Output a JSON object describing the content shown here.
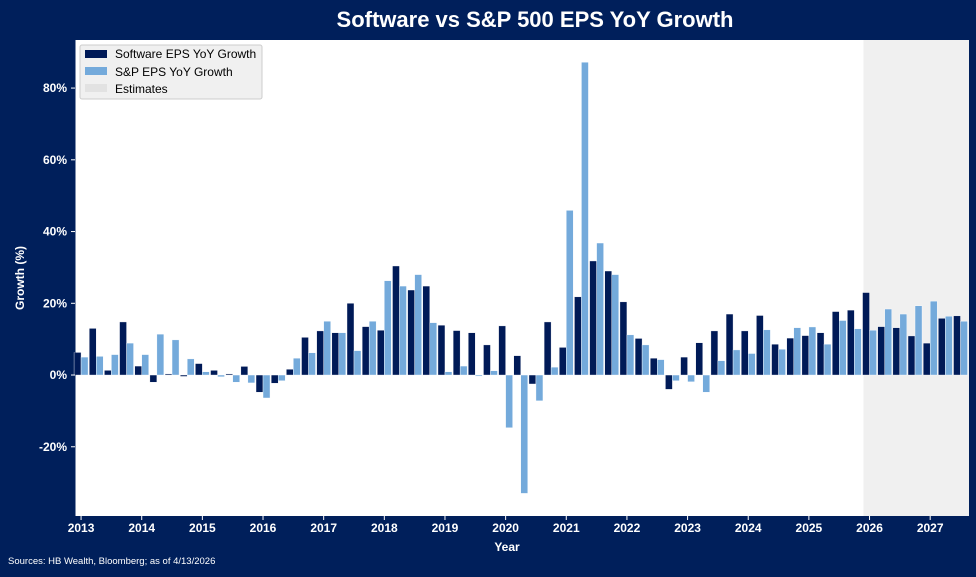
{
  "colors": {
    "background": "#001f5b",
    "software": "#001a57",
    "sp": "#74aadb",
    "estimates": "#f0f0f0"
  },
  "source": "Sources: HB Wealth, Bloomberg; as of 4/13/2026",
  "chart_data": {
    "type": "bar",
    "title": "Software vs S&P 500 EPS YoY Growth",
    "xlabel": "Year",
    "ylabel": "Growth (%)",
    "xlim": [
      2012.9,
      2027.64
    ],
    "ylim": [
      -39.3,
      93.4
    ],
    "x_ticks": [
      "2013",
      "2014",
      "2015",
      "2016",
      "2017",
      "2018",
      "2019",
      "2020",
      "2021",
      "2022",
      "2023",
      "2024",
      "2025",
      "2026",
      "2027"
    ],
    "y_ticks": [
      -20,
      0,
      20,
      40,
      60,
      80
    ],
    "y_tick_labels": [
      "-20%",
      "0%",
      "20%",
      "40%",
      "60%",
      "80%"
    ],
    "grid": false,
    "legend_position": "top-left",
    "estimates_range": [
      2025.9,
      2027.64
    ],
    "categories": [
      "2013-Q1",
      "2013-Q2",
      "2013-Q3",
      "2013-Q4",
      "2014-Q1",
      "2014-Q2",
      "2014-Q3",
      "2014-Q4",
      "2015-Q1",
      "2015-Q2",
      "2015-Q3",
      "2015-Q4",
      "2016-Q1",
      "2016-Q2",
      "2016-Q3",
      "2016-Q4",
      "2017-Q1",
      "2017-Q2",
      "2017-Q3",
      "2017-Q4",
      "2018-Q1",
      "2018-Q2",
      "2018-Q3",
      "2018-Q4",
      "2019-Q1",
      "2019-Q2",
      "2019-Q3",
      "2019-Q4",
      "2020-Q1",
      "2020-Q2",
      "2020-Q3",
      "2020-Q4",
      "2021-Q1",
      "2021-Q2",
      "2021-Q3",
      "2021-Q4",
      "2022-Q1",
      "2022-Q2",
      "2022-Q3",
      "2022-Q4",
      "2023-Q1",
      "2023-Q2",
      "2023-Q3",
      "2023-Q4",
      "2024-Q1",
      "2024-Q2",
      "2024-Q3",
      "2024-Q4",
      "2025-Q1",
      "2025-Q2",
      "2025-Q3",
      "2025-Q4",
      "2026-Q1",
      "2026-Q2",
      "2026-Q3",
      "2026-Q4",
      "2027-Q1",
      "2027-Q2",
      "2027-Q3"
    ],
    "series": [
      {
        "name": "Software EPS YoY Growth",
        "values": [
          6.3,
          13,
          1.3,
          14.8,
          2.5,
          -2,
          0.3,
          -0.4,
          3.2,
          1.3,
          0.3,
          2.4,
          -4.8,
          -2.3,
          1.6,
          10.5,
          12.3,
          11.8,
          20,
          13.5,
          12.5,
          30.4,
          23.7,
          24.8,
          13.9,
          12.4,
          11.8,
          8.4,
          13.7,
          5.4,
          -2.5,
          14.8,
          7.7,
          21.8,
          31.8,
          29,
          20.4,
          10.2,
          4.7,
          -4,
          5,
          9,
          12.3,
          17,
          12.3,
          16.6,
          8.6,
          10.3,
          11,
          11.8,
          17.7,
          18.1,
          23,
          13.5,
          13.2,
          10.9,
          8.9,
          15.8,
          16.5
        ]
      },
      {
        "name": "S&P EPS YoY Growth",
        "values": [
          5,
          5.2,
          5.7,
          8.9,
          5.7,
          11.4,
          9.8,
          4.5,
          0.9,
          -0.5,
          -2,
          -2.2,
          -6.4,
          -1.6,
          4.7,
          6.2,
          15,
          11.8,
          6.8,
          15,
          26.3,
          24.8,
          28,
          14.6,
          0.9,
          2.5,
          -0.3,
          1.2,
          -14.7,
          -33,
          -7.2,
          2.2,
          45.9,
          87.2,
          36.8,
          28,
          11.2,
          8.4,
          4.3,
          -1.6,
          -1.9,
          -4.8,
          4,
          7,
          6,
          12.6,
          7.2,
          13.2,
          13.4,
          8.6,
          15.2,
          12.9,
          12.5,
          18.4,
          17,
          19.3,
          20.6,
          16.4,
          15
        ]
      }
    ],
    "legend": [
      "Software EPS YoY Growth",
      "S&P EPS YoY Growth",
      "Estimates"
    ]
  }
}
